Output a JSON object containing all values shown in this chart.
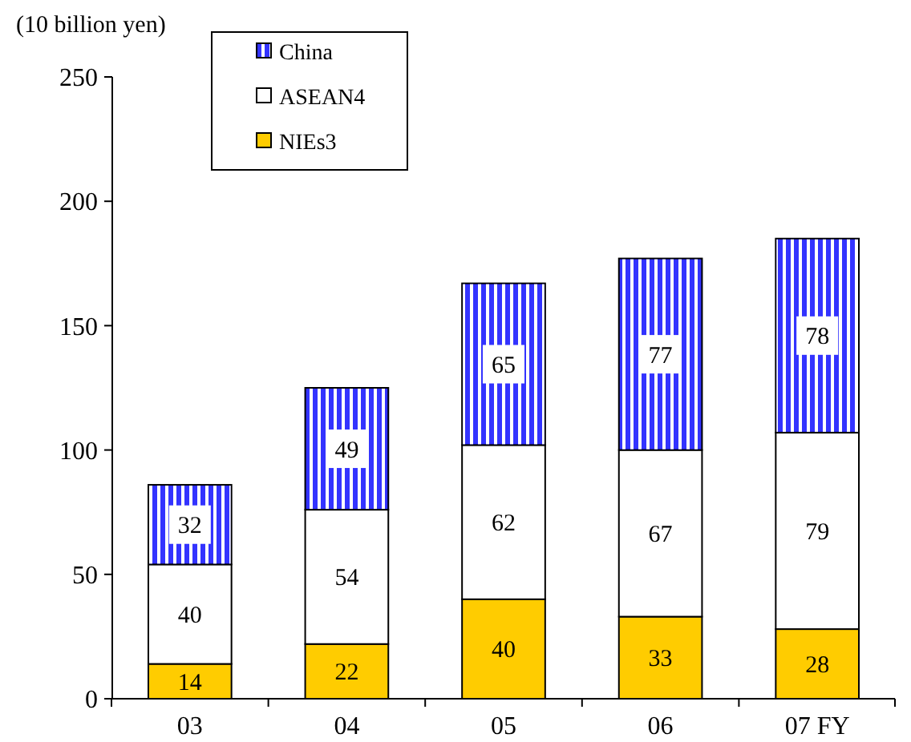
{
  "chart_data": {
    "type": "bar",
    "stacked": true,
    "ylabel": "(10 billion yen)",
    "categories": [
      "03",
      "04",
      "05",
      "06",
      "07 FY"
    ],
    "series": [
      {
        "name": "NIEs3",
        "color": "#ffcc00",
        "values": [
          14,
          22,
          40,
          33,
          28
        ]
      },
      {
        "name": "ASEAN4",
        "color": "#ffffff",
        "values": [
          40,
          54,
          62,
          67,
          79
        ]
      },
      {
        "name": "China",
        "color": "#3333ff",
        "values": [
          32,
          49,
          65,
          77,
          78
        ]
      }
    ],
    "ylim": [
      0,
      250
    ],
    "yticks": [
      0,
      50,
      100,
      150,
      200,
      250
    ],
    "grid": false,
    "legend": "top left",
    "data_labels": true
  }
}
